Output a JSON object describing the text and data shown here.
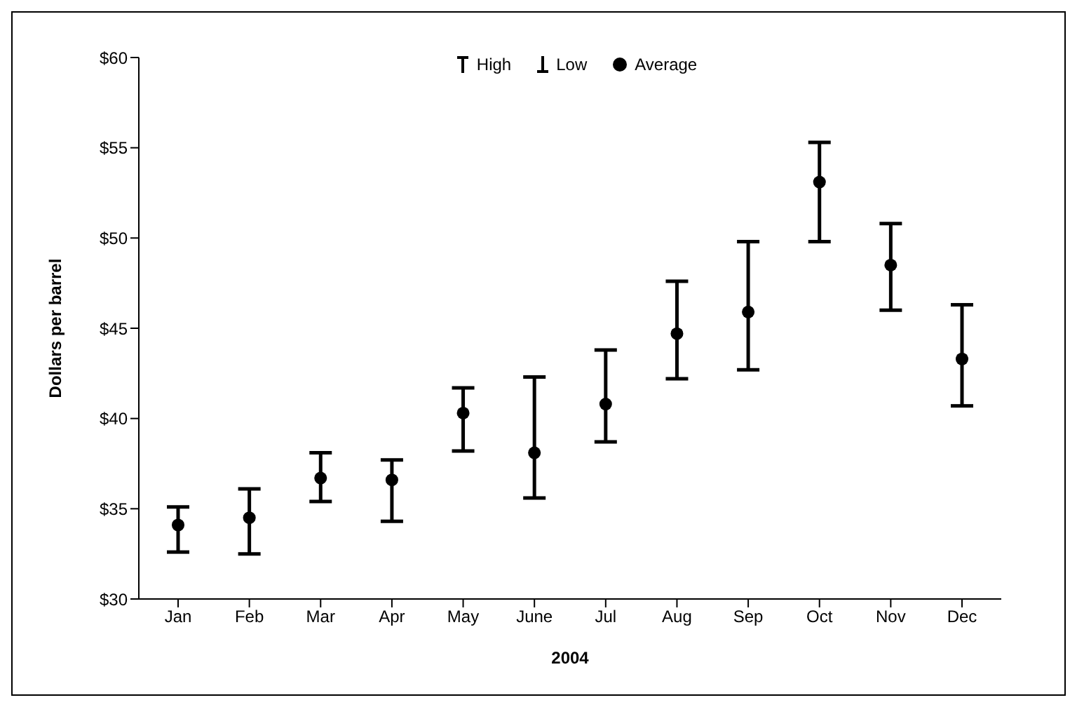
{
  "chart_data": {
    "type": "scatter",
    "xlabel": "2004",
    "ylabel": "Dollars per barrel",
    "categories": [
      "Jan",
      "Feb",
      "Mar",
      "Apr",
      "May",
      "June",
      "Jul",
      "Aug",
      "Sep",
      "Oct",
      "Nov",
      "Dec"
    ],
    "series": [
      {
        "name": "Average",
        "color": "#000000",
        "values": [
          34.1,
          34.5,
          36.7,
          36.6,
          40.3,
          38.1,
          40.8,
          44.7,
          45.9,
          53.1,
          48.5,
          43.3
        ],
        "errors": [
          [
            32.6,
            35.1
          ],
          [
            32.5,
            36.1
          ],
          [
            35.4,
            38.1
          ],
          [
            34.3,
            37.7
          ],
          [
            38.2,
            41.7
          ],
          [
            35.6,
            42.3
          ],
          [
            38.7,
            43.8
          ],
          [
            42.2,
            47.6
          ],
          [
            42.7,
            49.8
          ],
          [
            49.8,
            55.3
          ],
          [
            46.0,
            50.8
          ],
          [
            40.7,
            46.3
          ]
        ]
      }
    ],
    "annotations": [
      "High",
      "Low"
    ],
    "ylim": [
      30,
      60
    ],
    "yticks": [
      {
        "value": 30,
        "label": "$30"
      },
      {
        "value": 35,
        "label": "$35"
      },
      {
        "value": 40,
        "label": "$40"
      },
      {
        "value": 45,
        "label": "$45"
      },
      {
        "value": 50,
        "label": "$50"
      },
      {
        "value": 55,
        "label": "$55"
      },
      {
        "value": 60,
        "label": "$60"
      }
    ],
    "grid": false,
    "legend": "top",
    "marker": "circle"
  }
}
